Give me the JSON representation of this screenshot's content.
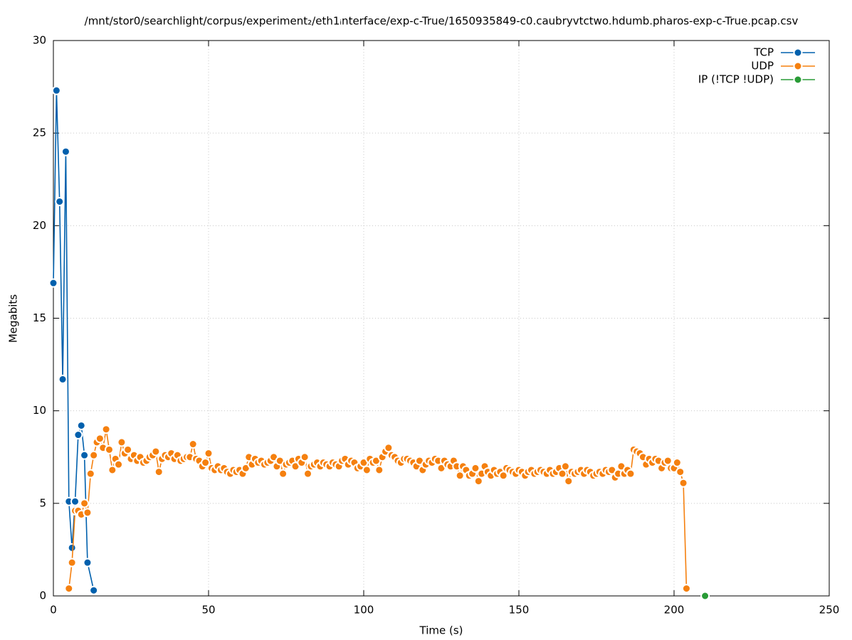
{
  "chart_data": {
    "type": "line",
    "title": "/mnt/stor0/searchlight/corpus/experiment₂/eth1ᵢnterface/exp-c-True/1650935849-c0.caubryvtctwo.hdumb.pharos-exp-c-True.pcap.csv",
    "x_label": "Time (s)",
    "y_label": "Megabits",
    "xlim": [
      0,
      250
    ],
    "xticks": [
      0,
      50,
      100,
      150,
      200,
      250
    ],
    "ylim": [
      0,
      30
    ],
    "yticks": [
      0,
      5,
      10,
      15,
      20,
      25,
      30
    ],
    "grid": true,
    "legend": "top-right",
    "series": [
      {
        "name": "TCP",
        "color": "#0060ad",
        "x": [
          0,
          1,
          2,
          3,
          4,
          5,
          6,
          7,
          8,
          9,
          10,
          11,
          13
        ],
        "values": [
          16.9,
          27.3,
          21.3,
          11.7,
          24.0,
          5.1,
          2.6,
          5.1,
          8.7,
          9.2,
          7.6,
          1.8,
          0.3
        ]
      },
      {
        "name": "UDP",
        "color": "#f5800f",
        "x": [
          5,
          6,
          7,
          8,
          9,
          10,
          11,
          12,
          13,
          14,
          15,
          16,
          17,
          18,
          19,
          20,
          21,
          22,
          23,
          24,
          25,
          26,
          27,
          28,
          29,
          30,
          31,
          32,
          33,
          34,
          35,
          36,
          37,
          38,
          39,
          40,
          41,
          42,
          43,
          44,
          45,
          46,
          47,
          48,
          49,
          50,
          51,
          52,
          53,
          54,
          55,
          56,
          57,
          58,
          59,
          60,
          61,
          62,
          63,
          64,
          65,
          66,
          67,
          68,
          69,
          70,
          71,
          72,
          73,
          74,
          75,
          76,
          77,
          78,
          79,
          80,
          81,
          82,
          83,
          84,
          85,
          86,
          87,
          88,
          89,
          90,
          91,
          92,
          93,
          94,
          95,
          96,
          97,
          98,
          99,
          100,
          101,
          102,
          103,
          104,
          105,
          106,
          107,
          108,
          109,
          110,
          111,
          112,
          113,
          114,
          115,
          116,
          117,
          118,
          119,
          120,
          121,
          122,
          123,
          124,
          125,
          126,
          127,
          128,
          129,
          130,
          131,
          132,
          133,
          134,
          135,
          136,
          137,
          138,
          139,
          140,
          141,
          142,
          143,
          144,
          145,
          146,
          147,
          148,
          149,
          150,
          151,
          152,
          153,
          154,
          155,
          156,
          157,
          158,
          159,
          160,
          161,
          162,
          163,
          164,
          165,
          166,
          167,
          168,
          169,
          170,
          171,
          172,
          173,
          174,
          175,
          176,
          177,
          178,
          179,
          180,
          181,
          182,
          183,
          184,
          185,
          186,
          187,
          188,
          189,
          190,
          191,
          192,
          193,
          194,
          195,
          196,
          197,
          198,
          199,
          200,
          201,
          202,
          203,
          204
        ],
        "values": [
          0.4,
          1.8,
          4.6,
          4.6,
          4.4,
          5.0,
          4.5,
          6.6,
          7.6,
          8.3,
          8.5,
          8.0,
          9.0,
          7.9,
          6.8,
          7.4,
          7.1,
          8.3,
          7.7,
          7.9,
          7.4,
          7.6,
          7.3,
          7.5,
          7.2,
          7.3,
          7.5,
          7.6,
          7.8,
          6.7,
          7.4,
          7.6,
          7.5,
          7.7,
          7.4,
          7.6,
          7.3,
          7.4,
          7.5,
          7.5,
          8.2,
          7.4,
          7.3,
          7.0,
          7.2,
          7.7,
          6.9,
          6.8,
          7.0,
          6.8,
          6.9,
          6.7,
          6.6,
          6.8,
          6.7,
          6.8,
          6.6,
          6.9,
          7.5,
          7.1,
          7.4,
          7.2,
          7.3,
          7.1,
          7.2,
          7.3,
          7.5,
          7.0,
          7.3,
          6.6,
          7.1,
          7.2,
          7.3,
          7.0,
          7.4,
          7.2,
          7.5,
          6.6,
          7.0,
          7.1,
          7.2,
          7.0,
          7.2,
          7.1,
          7.0,
          7.2,
          7.1,
          7.0,
          7.3,
          7.4,
          7.1,
          7.3,
          7.2,
          6.9,
          7.0,
          7.2,
          6.8,
          7.4,
          7.2,
          7.3,
          6.8,
          7.5,
          7.8,
          8.0,
          7.6,
          7.5,
          7.3,
          7.2,
          7.4,
          7.4,
          7.3,
          7.2,
          7.0,
          7.3,
          6.8,
          7.1,
          7.3,
          7.2,
          7.4,
          7.3,
          6.9,
          7.3,
          7.1,
          7.0,
          7.3,
          7.0,
          6.5,
          7.0,
          6.8,
          6.5,
          6.6,
          6.9,
          6.2,
          6.6,
          7.0,
          6.7,
          6.5,
          6.8,
          6.6,
          6.7,
          6.5,
          6.9,
          6.8,
          6.7,
          6.6,
          6.8,
          6.7,
          6.5,
          6.7,
          6.8,
          6.6,
          6.7,
          6.8,
          6.7,
          6.6,
          6.8,
          6.6,
          6.7,
          6.9,
          6.6,
          7.0,
          6.2,
          6.7,
          6.6,
          6.7,
          6.8,
          6.6,
          6.8,
          6.7,
          6.5,
          6.6,
          6.7,
          6.6,
          6.8,
          6.7,
          6.8,
          6.4,
          6.6,
          7.0,
          6.6,
          6.8,
          6.6,
          7.9,
          7.8,
          7.7,
          7.5,
          7.1,
          7.4,
          7.2,
          7.4,
          7.3,
          6.9,
          7.2,
          7.3,
          6.9,
          6.9,
          7.2,
          6.7,
          6.1,
          0.4
        ]
      },
      {
        "name": "IP (!TCP  !UDP)",
        "color": "#299b36",
        "x": [
          210
        ],
        "values": [
          0
        ]
      }
    ]
  }
}
